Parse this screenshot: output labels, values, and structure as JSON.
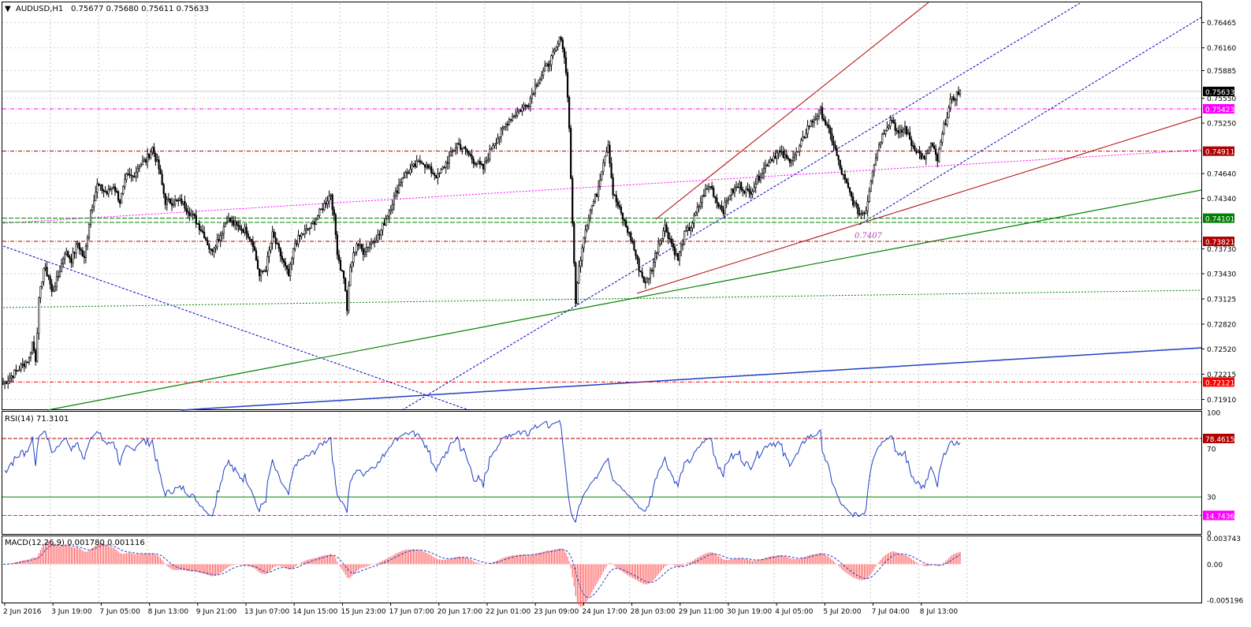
{
  "header": {
    "symbol": "AUDUSD,H1",
    "ohlc": "0.75677 0.75680 0.75611 0.75633",
    "rsi_label": "RSI(14) 71.3101",
    "macd_label": "MACD(12,26,9) 0.001780 0.001116"
  },
  "colors": {
    "candle": "#000000",
    "rsi": "#1f3fc4",
    "macd_hist": "#ff5050",
    "macd_signal": "#1f3fc4",
    "magenta": "#ff00ff",
    "darkred": "#b00000",
    "green": "#008000",
    "blue": "#0000c0"
  },
  "chart_data": [
    {
      "type": "candlestick",
      "name": "price",
      "ylim": [
        0.718,
        0.767
      ],
      "y_ticks": [
        "0.76465",
        "0.76160",
        "0.75885",
        "0.75550",
        "0.75250",
        "0.74640",
        "0.74340",
        "0.73730",
        "0.73430",
        "0.73125",
        "0.72820",
        "0.72520",
        "0.72215",
        "0.71910"
      ],
      "x_ticks": [
        "2 Jun 2016",
        "3 Jun 19:00",
        "7 Jun 05:00",
        "8 Jun 13:00",
        "9 Jun 21:00",
        "13 Jun 07:00",
        "14 Jun 15:00",
        "15 Jun 23:00",
        "17 Jun 07:00",
        "20 Jun 17:00",
        "22 Jun 01:00",
        "23 Jun 09:00",
        "24 Jun 17:00",
        "28 Jun 03:00",
        "29 Jun 11:00",
        "30 Jun 19:00",
        "4 Jul 05:00",
        "5 Jul 20:00",
        "7 Jul 04:00",
        "8 Jul 13:00"
      ],
      "anchors": [
        [
          0,
          0.721
        ],
        [
          8,
          0.7225
        ],
        [
          16,
          0.724
        ],
        [
          18,
          0.726
        ],
        [
          20,
          0.724
        ],
        [
          22,
          0.731
        ],
        [
          25,
          0.735
        ],
        [
          28,
          0.734
        ],
        [
          30,
          0.732
        ],
        [
          34,
          0.734
        ],
        [
          38,
          0.737
        ],
        [
          42,
          0.736
        ],
        [
          46,
          0.738
        ],
        [
          50,
          0.736
        ],
        [
          54,
          0.742
        ],
        [
          58,
          0.745
        ],
        [
          64,
          0.744
        ],
        [
          68,
          0.745
        ],
        [
          72,
          0.743
        ],
        [
          76,
          0.746
        ],
        [
          80,
          0.746
        ],
        [
          84,
          0.7475
        ],
        [
          88,
          0.748
        ],
        [
          92,
          0.7495
        ],
        [
          96,
          0.747
        ],
        [
          100,
          0.743
        ],
        [
          104,
          0.743
        ],
        [
          110,
          0.743
        ],
        [
          114,
          0.742
        ],
        [
          118,
          0.741
        ],
        [
          124,
          0.739
        ],
        [
          128,
          0.737
        ],
        [
          134,
          0.739
        ],
        [
          138,
          0.741
        ],
        [
          144,
          0.74
        ],
        [
          150,
          0.7395
        ],
        [
          154,
          0.738
        ],
        [
          158,
          0.734
        ],
        [
          162,
          0.735
        ],
        [
          166,
          0.739
        ],
        [
          170,
          0.737
        ],
        [
          176,
          0.734
        ],
        [
          180,
          0.738
        ],
        [
          184,
          0.739
        ],
        [
          190,
          0.74
        ],
        [
          196,
          0.742
        ],
        [
          202,
          0.744
        ],
        [
          204,
          0.741
        ],
        [
          206,
          0.737
        ],
        [
          208,
          0.735
        ],
        [
          210,
          0.734
        ],
        [
          212,
          0.73
        ],
        [
          214,
          0.735
        ],
        [
          218,
          0.738
        ],
        [
          222,
          0.737
        ],
        [
          226,
          0.738
        ],
        [
          232,
          0.739
        ],
        [
          236,
          0.741
        ],
        [
          242,
          0.744
        ],
        [
          246,
          0.746
        ],
        [
          252,
          0.747
        ],
        [
          258,
          0.748
        ],
        [
          262,
          0.747
        ],
        [
          268,
          0.746
        ],
        [
          274,
          0.748
        ],
        [
          280,
          0.75
        ],
        [
          286,
          0.749
        ],
        [
          290,
          0.748
        ],
        [
          296,
          0.747
        ],
        [
          302,
          0.75
        ],
        [
          306,
          0.751
        ],
        [
          312,
          0.753
        ],
        [
          318,
          0.754
        ],
        [
          324,
          0.755
        ],
        [
          328,
          0.757
        ],
        [
          334,
          0.759
        ],
        [
          340,
          0.761
        ],
        [
          344,
          0.763
        ],
        [
          347,
          0.759
        ],
        [
          349,
          0.752
        ],
        [
          351,
          0.74
        ],
        [
          353,
          0.731
        ],
        [
          355,
          0.735
        ],
        [
          358,
          0.739
        ],
        [
          362,
          0.742
        ],
        [
          366,
          0.744
        ],
        [
          370,
          0.748
        ],
        [
          373,
          0.75
        ],
        [
          376,
          0.744
        ],
        [
          380,
          0.742
        ],
        [
          384,
          0.74
        ],
        [
          388,
          0.738
        ],
        [
          392,
          0.735
        ],
        [
          396,
          0.733
        ],
        [
          400,
          0.735
        ],
        [
          404,
          0.738
        ],
        [
          408,
          0.74
        ],
        [
          412,
          0.738
        ],
        [
          416,
          0.736
        ],
        [
          420,
          0.739
        ],
        [
          424,
          0.74
        ],
        [
          428,
          0.742
        ],
        [
          432,
          0.744
        ],
        [
          436,
          0.745
        ],
        [
          440,
          0.743
        ],
        [
          444,
          0.742
        ],
        [
          448,
          0.744
        ],
        [
          454,
          0.745
        ],
        [
          460,
          0.744
        ],
        [
          466,
          0.746
        ],
        [
          472,
          0.748
        ],
        [
          478,
          0.749
        ],
        [
          484,
          0.748
        ],
        [
          490,
          0.749
        ],
        [
          496,
          0.752
        ],
        [
          500,
          0.753
        ],
        [
          504,
          0.754
        ],
        [
          508,
          0.752
        ],
        [
          512,
          0.75
        ],
        [
          516,
          0.747
        ],
        [
          520,
          0.745
        ],
        [
          524,
          0.743
        ],
        [
          528,
          0.7415
        ],
        [
          532,
          0.742
        ],
        [
          536,
          0.747
        ],
        [
          540,
          0.75
        ],
        [
          544,
          0.752
        ],
        [
          548,
          0.753
        ],
        [
          552,
          0.751
        ],
        [
          556,
          0.752
        ],
        [
          560,
          0.75
        ],
        [
          564,
          0.749
        ],
        [
          568,
          0.748
        ],
        [
          572,
          0.75
        ],
        [
          576,
          0.748
        ],
        [
          580,
          0.752
        ],
        [
          584,
          0.755
        ],
        [
          588,
          0.756
        ],
        [
          590,
          0.7563
        ]
      ],
      "candle_count": 591,
      "horizontal_lines": [
        {
          "value": 0.75423,
          "label": "0.75423",
          "color": "magenta"
        },
        {
          "value": 0.74911,
          "label": "0.74911",
          "color": "darkred"
        },
        {
          "value": 0.74101,
          "label": "0.74101",
          "color": "green"
        },
        {
          "value": 0.7405,
          "label": "",
          "color": "green"
        },
        {
          "value": 0.73821,
          "label": "0.73821",
          "color": "darkred"
        },
        {
          "value": 0.72121,
          "label": "0.72121",
          "color": "red"
        }
      ],
      "current_price": "0.75633",
      "annotation": "0.7407"
    },
    {
      "type": "line",
      "name": "RSI(14)",
      "ylim": [
        0,
        100
      ],
      "y_ticks": [
        "100",
        "70",
        "30",
        "0"
      ],
      "levels": [
        {
          "value": 78.4615,
          "label": "78.4615",
          "color": "darkred"
        },
        {
          "value": 30,
          "label": "",
          "color": "green"
        },
        {
          "value": 14.7436,
          "label": "14.7436",
          "color": "magenta"
        }
      ]
    },
    {
      "type": "bar",
      "name": "MACD(12,26,9)",
      "ylim": [
        -0.0054,
        0.0039
      ],
      "y_ticks": [
        "0.003743",
        "0.00",
        "-0.005196"
      ]
    }
  ]
}
